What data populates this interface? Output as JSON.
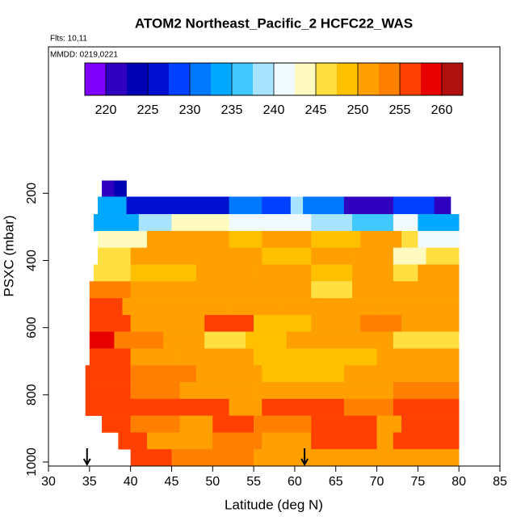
{
  "chart_data": {
    "type": "heatmap",
    "title": "ATOM2 Northeast_Pacific_2 HCFC22_WAS",
    "annotations": [
      "Flts: 10,11",
      "MMDD: 0219,0221"
    ],
    "xlabel": "Latitude (deg N)",
    "ylabel": "PSXC (mbar)",
    "xlim": [
      30,
      85
    ],
    "xticks": [
      30,
      35,
      40,
      45,
      50,
      55,
      60,
      65,
      70,
      75,
      80,
      85
    ],
    "ylim": [
      1012,
      -236
    ],
    "yticks": [
      200,
      400,
      600,
      800,
      1000
    ],
    "colorbar": {
      "breaks": [
        217.5,
        220,
        222.5,
        225,
        227.5,
        230,
        232.5,
        235,
        237.5,
        240,
        242.5,
        245,
        247.5,
        250,
        252.5,
        255,
        257.5,
        260,
        262.5
      ],
      "colors": [
        "#8000ff",
        "#3000c0",
        "#0000b4",
        "#0010d0",
        "#0040ff",
        "#0078ff",
        "#00a8ff",
        "#40c8ff",
        "#a8e4ff",
        "#f0faff",
        "#fffac0",
        "#ffe040",
        "#ffc000",
        "#ffa000",
        "#ff8000",
        "#ff4000",
        "#e80000",
        "#b01010"
      ],
      "ticks": [
        220,
        225,
        230,
        235,
        240,
        245,
        250,
        255,
        260
      ]
    },
    "arrows": [
      34.7,
      61.2
    ],
    "rows": [
      {
        "p": [
          162,
          210
        ],
        "segments": [
          [
            36.5,
            38,
            221
          ],
          [
            38,
            39.5,
            224
          ]
        ]
      },
      {
        "p": [
          210,
          262
        ],
        "segments": [
          [
            36,
            39.5,
            233
          ],
          [
            39.5,
            52,
            226
          ],
          [
            52,
            56,
            232
          ],
          [
            56,
            59.5,
            228
          ],
          [
            59.5,
            61,
            238
          ],
          [
            61,
            66,
            230
          ],
          [
            66,
            72,
            222
          ],
          [
            72,
            77,
            228
          ],
          [
            77,
            79,
            222
          ]
        ]
      },
      {
        "p": [
          262,
          312
        ],
        "segments": [
          [
            35.5,
            41,
            234
          ],
          [
            41,
            45,
            238
          ],
          [
            45,
            52,
            244
          ],
          [
            52,
            57,
            240
          ],
          [
            57,
            62,
            242
          ],
          [
            62,
            67,
            238
          ],
          [
            67,
            72,
            236
          ],
          [
            72,
            75,
            240
          ],
          [
            75,
            80,
            234
          ]
        ]
      },
      {
        "p": [
          312,
          362
        ],
        "segments": [
          [
            36,
            42,
            244
          ],
          [
            42,
            52,
            250
          ],
          [
            52,
            56,
            248
          ],
          [
            56,
            62,
            251
          ],
          [
            62,
            68,
            249
          ],
          [
            68,
            73,
            250
          ],
          [
            73,
            75,
            247
          ],
          [
            75,
            80,
            242
          ]
        ]
      },
      {
        "p": [
          362,
          412
        ],
        "segments": [
          [
            36,
            40,
            247
          ],
          [
            40,
            50,
            250
          ],
          [
            50,
            56,
            251
          ],
          [
            56,
            62,
            249
          ],
          [
            62,
            67,
            250
          ],
          [
            67,
            72,
            251
          ],
          [
            72,
            76,
            244
          ],
          [
            76,
            80,
            246
          ]
        ]
      },
      {
        "p": [
          412,
          462
        ],
        "segments": [
          [
            35.5,
            40,
            247
          ],
          [
            40,
            48,
            249
          ],
          [
            48,
            55,
            251
          ],
          [
            55,
            62,
            250
          ],
          [
            62,
            67,
            248
          ],
          [
            67,
            72,
            251
          ],
          [
            72,
            75,
            247
          ],
          [
            75,
            80,
            250
          ]
        ]
      },
      {
        "p": [
          462,
          512
        ],
        "segments": [
          [
            35,
            40,
            254
          ],
          [
            40,
            47,
            251
          ],
          [
            47,
            54,
            250
          ],
          [
            54,
            62,
            252
          ],
          [
            62,
            67,
            247
          ],
          [
            67,
            72,
            250
          ],
          [
            72,
            80,
            251
          ]
        ]
      },
      {
        "p": [
          512,
          562
        ],
        "segments": [
          [
            35,
            39,
            255
          ],
          [
            39,
            45,
            252
          ],
          [
            45,
            52,
            251
          ],
          [
            52,
            58,
            252
          ],
          [
            58,
            63,
            250
          ],
          [
            63,
            70,
            251
          ],
          [
            70,
            80,
            252
          ]
        ]
      },
      {
        "p": [
          562,
          612
        ],
        "segments": [
          [
            35,
            40,
            256
          ],
          [
            40,
            49,
            252
          ],
          [
            49,
            55,
            255
          ],
          [
            55,
            62,
            249
          ],
          [
            62,
            68,
            251
          ],
          [
            68,
            73,
            253
          ],
          [
            73,
            80,
            250
          ]
        ]
      },
      {
        "p": [
          612,
          662
        ],
        "segments": [
          [
            35,
            38,
            258
          ],
          [
            38,
            44,
            253
          ],
          [
            44,
            49,
            250
          ],
          [
            49,
            54,
            247
          ],
          [
            54,
            59,
            248
          ],
          [
            59,
            66,
            250
          ],
          [
            66,
            72,
            252
          ],
          [
            72,
            80,
            246
          ]
        ]
      },
      {
        "p": [
          662,
          712
        ],
        "segments": [
          [
            35,
            40,
            256
          ],
          [
            40,
            46,
            252
          ],
          [
            46,
            55,
            250
          ],
          [
            55,
            62,
            249
          ],
          [
            62,
            70,
            248
          ],
          [
            70,
            80,
            250
          ]
        ]
      },
      {
        "p": [
          712,
          762
        ],
        "segments": [
          [
            34.5,
            40,
            255
          ],
          [
            40,
            48,
            253
          ],
          [
            48,
            56,
            251
          ],
          [
            56,
            66,
            249
          ],
          [
            66,
            72,
            251
          ],
          [
            72,
            80,
            250
          ]
        ]
      },
      {
        "p": [
          762,
          812
        ],
        "segments": [
          [
            34.5,
            40,
            256
          ],
          [
            40,
            46,
            254
          ],
          [
            46,
            55,
            252
          ],
          [
            55,
            62,
            250
          ],
          [
            62,
            72,
            251
          ],
          [
            72,
            80,
            253
          ]
        ]
      },
      {
        "p": [
          812,
          862
        ],
        "segments": [
          [
            34.5,
            42,
            256
          ],
          [
            42,
            52,
            255
          ],
          [
            52,
            56,
            252
          ],
          [
            56,
            66,
            255
          ],
          [
            66,
            72,
            254
          ],
          [
            72,
            80,
            255
          ]
        ]
      },
      {
        "p": [
          862,
          912
        ],
        "segments": [
          [
            36.5,
            40,
            256
          ],
          [
            40,
            46,
            253
          ],
          [
            46,
            50,
            251
          ],
          [
            50,
            55,
            255
          ],
          [
            55,
            62,
            254
          ],
          [
            62,
            70,
            256
          ],
          [
            70,
            73,
            251
          ],
          [
            73,
            80,
            255
          ]
        ]
      },
      {
        "p": [
          912,
          962
        ],
        "segments": [
          [
            38.5,
            42,
            256
          ],
          [
            42,
            50,
            252
          ],
          [
            50,
            56,
            254
          ],
          [
            56,
            62,
            251
          ],
          [
            62,
            70,
            256
          ],
          [
            70,
            72,
            251
          ],
          [
            72,
            80,
            255
          ]
        ]
      },
      {
        "p": [
          962,
          1012
        ],
        "segments": [
          [
            40,
            45,
            256
          ],
          [
            45,
            55,
            253
          ],
          [
            55,
            62,
            252
          ],
          [
            62,
            70,
            251
          ],
          [
            70,
            80,
            252
          ]
        ]
      }
    ]
  }
}
